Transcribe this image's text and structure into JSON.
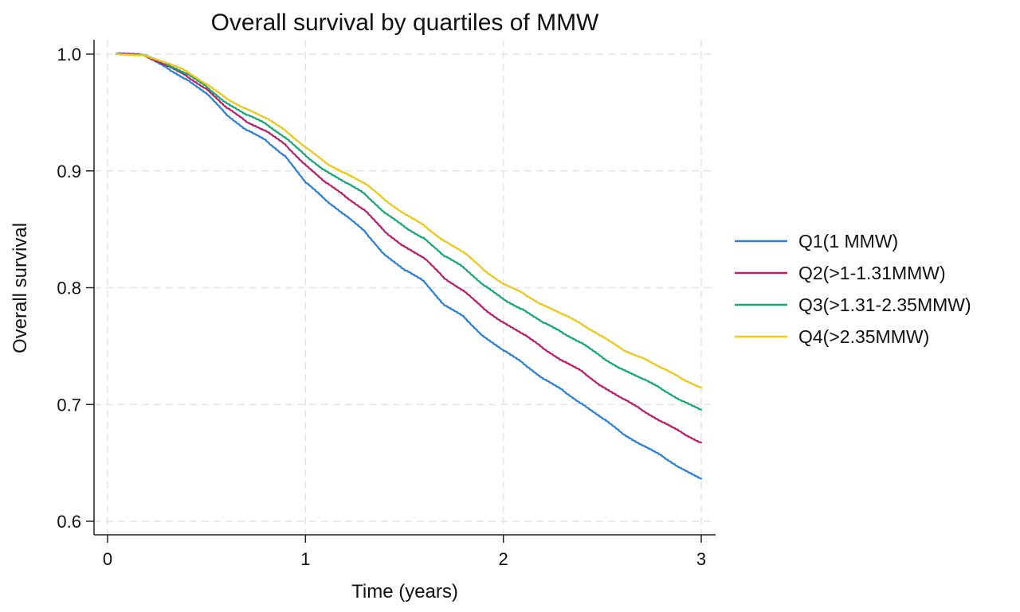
{
  "chart_data": {
    "type": "line",
    "title": "Overall survival by quartiles of MMW",
    "xlabel": "Time (years)",
    "ylabel": "Overall survival",
    "xlim": [
      0,
      3
    ],
    "ylim": [
      0.6,
      1.0
    ],
    "xticks": [
      0,
      1,
      2,
      3
    ],
    "xtick_labels": [
      "0",
      "1",
      "2",
      "3"
    ],
    "yticks": [
      0.6,
      0.7,
      0.8,
      0.9,
      1.0
    ],
    "ytick_labels": [
      "0.6",
      "0.7",
      "0.8",
      "0.9",
      "1.0"
    ],
    "grid": true,
    "legend_position": "right",
    "series": [
      {
        "name": "Q1(1 MMW)",
        "color": "#2b7fd4",
        "points": [
          [
            0.04,
            1.0
          ],
          [
            0.18,
            0.999
          ],
          [
            0.3,
            0.988
          ],
          [
            0.4,
            0.978
          ],
          [
            0.5,
            0.966
          ],
          [
            0.6,
            0.948
          ],
          [
            0.7,
            0.935
          ],
          [
            0.8,
            0.926
          ],
          [
            0.9,
            0.912
          ],
          [
            1.0,
            0.89
          ],
          [
            1.1,
            0.875
          ],
          [
            1.2,
            0.862
          ],
          [
            1.3,
            0.848
          ],
          [
            1.4,
            0.828
          ],
          [
            1.5,
            0.815
          ],
          [
            1.6,
            0.805
          ],
          [
            1.7,
            0.785
          ],
          [
            1.8,
            0.775
          ],
          [
            1.9,
            0.758
          ],
          [
            2.0,
            0.746
          ],
          [
            2.1,
            0.735
          ],
          [
            2.2,
            0.722
          ],
          [
            2.3,
            0.712
          ],
          [
            2.4,
            0.7
          ],
          [
            2.5,
            0.688
          ],
          [
            2.6,
            0.675
          ],
          [
            2.7,
            0.665
          ],
          [
            2.8,
            0.656
          ],
          [
            2.9,
            0.645
          ],
          [
            3.0,
            0.636
          ]
        ]
      },
      {
        "name": "Q2(>1-1.31MMW)",
        "color": "#b81f6a",
        "points": [
          [
            0.04,
            1.0
          ],
          [
            0.18,
            0.999
          ],
          [
            0.3,
            0.99
          ],
          [
            0.4,
            0.981
          ],
          [
            0.5,
            0.97
          ],
          [
            0.6,
            0.954
          ],
          [
            0.7,
            0.942
          ],
          [
            0.8,
            0.934
          ],
          [
            0.9,
            0.922
          ],
          [
            1.0,
            0.905
          ],
          [
            1.1,
            0.89
          ],
          [
            1.2,
            0.878
          ],
          [
            1.3,
            0.866
          ],
          [
            1.4,
            0.848
          ],
          [
            1.5,
            0.835
          ],
          [
            1.6,
            0.825
          ],
          [
            1.7,
            0.808
          ],
          [
            1.8,
            0.797
          ],
          [
            1.9,
            0.782
          ],
          [
            2.0,
            0.77
          ],
          [
            2.1,
            0.76
          ],
          [
            2.2,
            0.748
          ],
          [
            2.3,
            0.737
          ],
          [
            2.4,
            0.728
          ],
          [
            2.5,
            0.715
          ],
          [
            2.6,
            0.705
          ],
          [
            2.7,
            0.695
          ],
          [
            2.8,
            0.685
          ],
          [
            2.9,
            0.676
          ],
          [
            3.0,
            0.667
          ]
        ]
      },
      {
        "name": "Q3(>1.31-2.35MMW)",
        "color": "#18a57a",
        "points": [
          [
            0.04,
            1.0
          ],
          [
            0.18,
            0.999
          ],
          [
            0.3,
            0.991
          ],
          [
            0.4,
            0.983
          ],
          [
            0.5,
            0.972
          ],
          [
            0.6,
            0.958
          ],
          [
            0.7,
            0.948
          ],
          [
            0.8,
            0.94
          ],
          [
            0.9,
            0.928
          ],
          [
            1.0,
            0.913
          ],
          [
            1.1,
            0.9
          ],
          [
            1.2,
            0.89
          ],
          [
            1.3,
            0.88
          ],
          [
            1.4,
            0.864
          ],
          [
            1.5,
            0.852
          ],
          [
            1.6,
            0.842
          ],
          [
            1.7,
            0.827
          ],
          [
            1.8,
            0.817
          ],
          [
            1.9,
            0.802
          ],
          [
            2.0,
            0.79
          ],
          [
            2.1,
            0.781
          ],
          [
            2.2,
            0.77
          ],
          [
            2.3,
            0.761
          ],
          [
            2.4,
            0.752
          ],
          [
            2.5,
            0.74
          ],
          [
            2.6,
            0.73
          ],
          [
            2.7,
            0.722
          ],
          [
            2.8,
            0.713
          ],
          [
            2.9,
            0.703
          ],
          [
            3.0,
            0.695
          ]
        ]
      },
      {
        "name": "Q4(>2.35MMW)",
        "color": "#ecc81a",
        "points": [
          [
            0.04,
            1.0
          ],
          [
            0.18,
            0.999
          ],
          [
            0.3,
            0.992
          ],
          [
            0.4,
            0.985
          ],
          [
            0.5,
            0.974
          ],
          [
            0.6,
            0.962
          ],
          [
            0.7,
            0.953
          ],
          [
            0.8,
            0.945
          ],
          [
            0.9,
            0.934
          ],
          [
            1.0,
            0.92
          ],
          [
            1.1,
            0.907
          ],
          [
            1.2,
            0.898
          ],
          [
            1.3,
            0.889
          ],
          [
            1.4,
            0.875
          ],
          [
            1.5,
            0.863
          ],
          [
            1.6,
            0.853
          ],
          [
            1.7,
            0.84
          ],
          [
            1.8,
            0.83
          ],
          [
            1.9,
            0.815
          ],
          [
            2.0,
            0.803
          ],
          [
            2.1,
            0.795
          ],
          [
            2.2,
            0.785
          ],
          [
            2.3,
            0.777
          ],
          [
            2.4,
            0.768
          ],
          [
            2.5,
            0.758
          ],
          [
            2.6,
            0.747
          ],
          [
            2.7,
            0.74
          ],
          [
            2.8,
            0.731
          ],
          [
            2.9,
            0.722
          ],
          [
            3.0,
            0.714
          ]
        ]
      }
    ]
  }
}
